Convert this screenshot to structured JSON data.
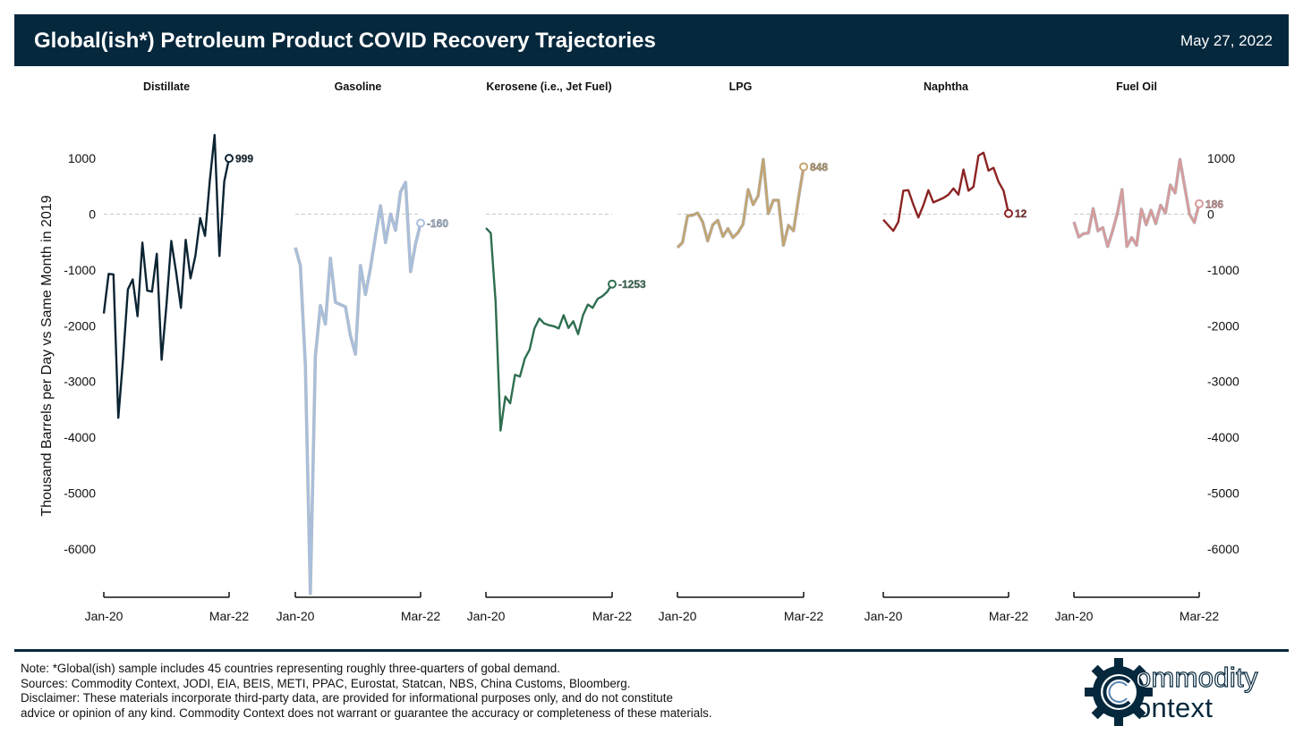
{
  "header": {
    "title": "Global(ish*) Petroleum Product COVID Recovery Trajectories",
    "date": "May 27, 2022"
  },
  "footer": {
    "note": "Note: *Global(ish) sample includes 45 countries representing roughly three-quarters of gobal demand.",
    "sources": "Sources: Commodity Context, JODI, EIA, BEIS, METI, PPAC, Eurostat, Statcan, NBS, China Customs, Bloomberg.",
    "disclaimer_1": "Disclaimer: These materials incorporate third-party data, are provided for informational purposes only, and do not constitute",
    "disclaimer_2": "advice or opinion of any kind. Commodity Context does not warrant or guarantee the accuracy or completeness of these materials."
  },
  "logo": {
    "line1": "ommodity",
    "line2": "ontext",
    "icon": "gear-c-icon"
  },
  "chart_data": {
    "type": "line",
    "ylabel": "Thousand Barrels per Day vs Same Month in 2019",
    "ylim": [
      -6850,
      1450
    ],
    "yticks": [
      1000,
      0,
      -1000,
      -2000,
      -3000,
      -4000,
      -5000,
      -6000
    ],
    "x_ticks": [
      "Jan-20",
      "Mar-22"
    ],
    "reference_line": 0,
    "grid": false,
    "series": [
      {
        "name": "Distillate",
        "color": "#0b2433",
        "last_label": "999",
        "values": [
          -1780,
          -1070,
          -1080,
          -3650,
          -2600,
          -1350,
          -1170,
          -1830,
          -510,
          -1370,
          -1390,
          -710,
          -2610,
          -1630,
          -480,
          -1040,
          -1680,
          -460,
          -1150,
          -750,
          -70,
          -390,
          610,
          1420,
          -750,
          590,
          999
        ]
      },
      {
        "name": "Gasoline",
        "color": "#a9bfdd",
        "last_label": "-160",
        "values": [
          -600,
          -920,
          -2700,
          -6800,
          -2550,
          -1640,
          -1970,
          -790,
          -1580,
          -1620,
          -1660,
          -2180,
          -2510,
          -920,
          -1440,
          -960,
          -390,
          150,
          -510,
          0,
          -290,
          400,
          570,
          -1030,
          -530,
          -160
        ]
      },
      {
        "name": "Kerosene (i.e., Jet Fuel)",
        "color": "#2e6e4f",
        "last_label": "-1253",
        "values": [
          -250,
          -340,
          -1570,
          -3880,
          -3270,
          -3390,
          -2880,
          -2910,
          -2590,
          -2430,
          -2050,
          -1870,
          -1960,
          -1990,
          -2010,
          -2050,
          -1810,
          -2040,
          -1920,
          -2150,
          -1810,
          -1620,
          -1680,
          -1520,
          -1470,
          -1390,
          -1253
        ]
      },
      {
        "name": "LPG",
        "color": "#c4a46f",
        "last_label": "848",
        "values": [
          -600,
          -510,
          -30,
          -20,
          20,
          -140,
          -480,
          -190,
          -110,
          -400,
          -260,
          -420,
          -330,
          -180,
          440,
          170,
          330,
          980,
          10,
          250,
          250,
          -560,
          -200,
          -300,
          300,
          848
        ]
      },
      {
        "name": "Naphtha",
        "color": "#8b2323",
        "last_label": "12",
        "values": [
          -100,
          -200,
          -300,
          -140,
          420,
          430,
          170,
          -60,
          160,
          430,
          210,
          250,
          290,
          350,
          460,
          350,
          800,
          420,
          490,
          1050,
          1100,
          780,
          830,
          580,
          420,
          12
        ]
      },
      {
        "name": "Fuel Oil",
        "color": "#d99a9a",
        "last_label": "186",
        "values": [
          -140,
          -410,
          -350,
          -340,
          100,
          -300,
          -240,
          -580,
          -310,
          10,
          440,
          -580,
          -420,
          -560,
          90,
          -190,
          70,
          -170,
          160,
          20,
          520,
          380,
          980,
          490,
          0,
          -150,
          186
        ]
      }
    ]
  }
}
